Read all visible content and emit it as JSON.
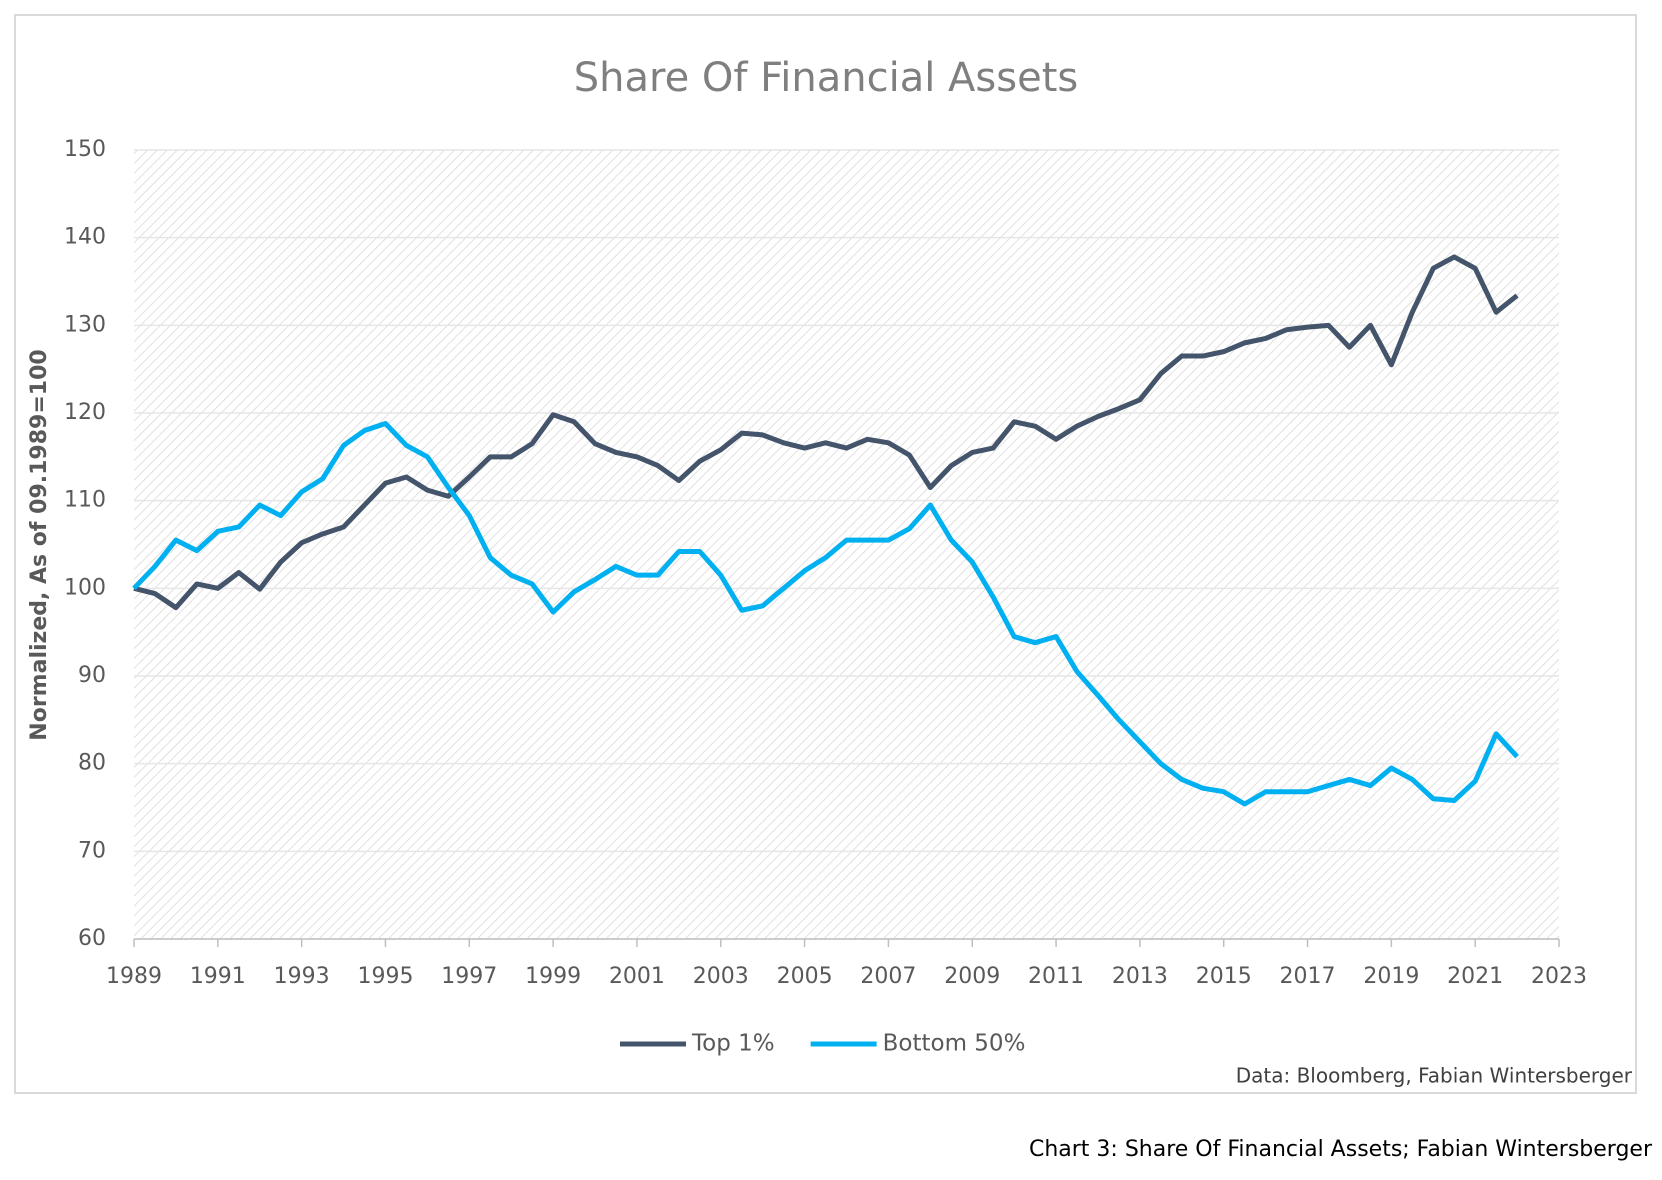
{
  "chart_data": {
    "type": "line",
    "title": "Share Of Financial Assets",
    "y_label": "Normalized, As of 09.1989=100",
    "source": "Data: Bloomberg, Fabian Wintersberger",
    "x": [
      1989,
      1989.5,
      1990,
      1990.5,
      1991,
      1991.5,
      1992,
      1992.5,
      1993,
      1993.5,
      1994,
      1994.5,
      1995,
      1995.5,
      1996,
      1996.5,
      1997,
      1997.5,
      1998,
      1998.5,
      1999,
      1999.5,
      2000,
      2000.5,
      2001,
      2001.5,
      2002,
      2002.5,
      2003,
      2003.5,
      2004,
      2004.5,
      2005,
      2005.5,
      2006,
      2006.5,
      2007,
      2007.5,
      2008,
      2008.5,
      2009,
      2009.5,
      2010,
      2010.5,
      2011,
      2011.5,
      2012,
      2012.5,
      2013,
      2013.5,
      2014,
      2014.5,
      2015,
      2015.5,
      2016,
      2016.5,
      2017,
      2017.5,
      2018,
      2018.5,
      2019,
      2019.5,
      2020,
      2020.5,
      2021,
      2021.5,
      2022
    ],
    "series": [
      {
        "name": "Top 1%",
        "color": "#44546a",
        "values": [
          100,
          99.4,
          97.8,
          100.5,
          100,
          101.8,
          99.9,
          103,
          105.2,
          106.2,
          107,
          109.5,
          112,
          112.7,
          111.2,
          110.5,
          112.7,
          115,
          115,
          116.5,
          119.8,
          119,
          116.5,
          115.5,
          115,
          114,
          112.3,
          114.5,
          115.8,
          117.7,
          117.5,
          116.6,
          116,
          116.6,
          116,
          117,
          116.6,
          115.2,
          111.5,
          114,
          115.5,
          116,
          119,
          118.5,
          117,
          118.5,
          119.6,
          120.5,
          121.5,
          124.5,
          126.5,
          126.5,
          127,
          128,
          128.5,
          129.5,
          129.8,
          130,
          127.5,
          130,
          125.5,
          131.5,
          136.5,
          137.8,
          136.5,
          131.5,
          133.4
        ]
      },
      {
        "name": "Bottom 50%",
        "color": "#00b0f0",
        "values": [
          100,
          102.5,
          105.5,
          104.3,
          106.5,
          107,
          109.5,
          108.3,
          111,
          112.5,
          116.3,
          118,
          118.8,
          116.3,
          115,
          111.5,
          108.3,
          103.5,
          101.5,
          100.5,
          97.3,
          99.6,
          101,
          102.5,
          101.5,
          101.5,
          104.2,
          104.2,
          101.5,
          97.5,
          98,
          100,
          102,
          103.5,
          105.5,
          105.5,
          105.5,
          106.8,
          109.5,
          105.5,
          103,
          99,
          94.5,
          93.8,
          94.5,
          90.5,
          87.8,
          85,
          82.5,
          80,
          78.2,
          77.2,
          76.8,
          75.4,
          76.8,
          76.8,
          76.8,
          77.5,
          78.2,
          77.5,
          79.5,
          78.2,
          76,
          75.8,
          78,
          83.4,
          80.8
        ]
      }
    ],
    "xlim": [
      1989,
      2023
    ],
    "xticks": [
      1989,
      1991,
      1993,
      1995,
      1997,
      1999,
      2001,
      2003,
      2005,
      2007,
      2009,
      2011,
      2013,
      2015,
      2017,
      2019,
      2021,
      2023
    ],
    "ylim": [
      60,
      150
    ],
    "yticks": [
      60,
      70,
      80,
      90,
      100,
      110,
      120,
      130,
      140,
      150
    ],
    "grid": true,
    "legend": "bottom"
  },
  "caption": "Chart 3: Share Of Financial Assets; Fabian Wintersberger"
}
